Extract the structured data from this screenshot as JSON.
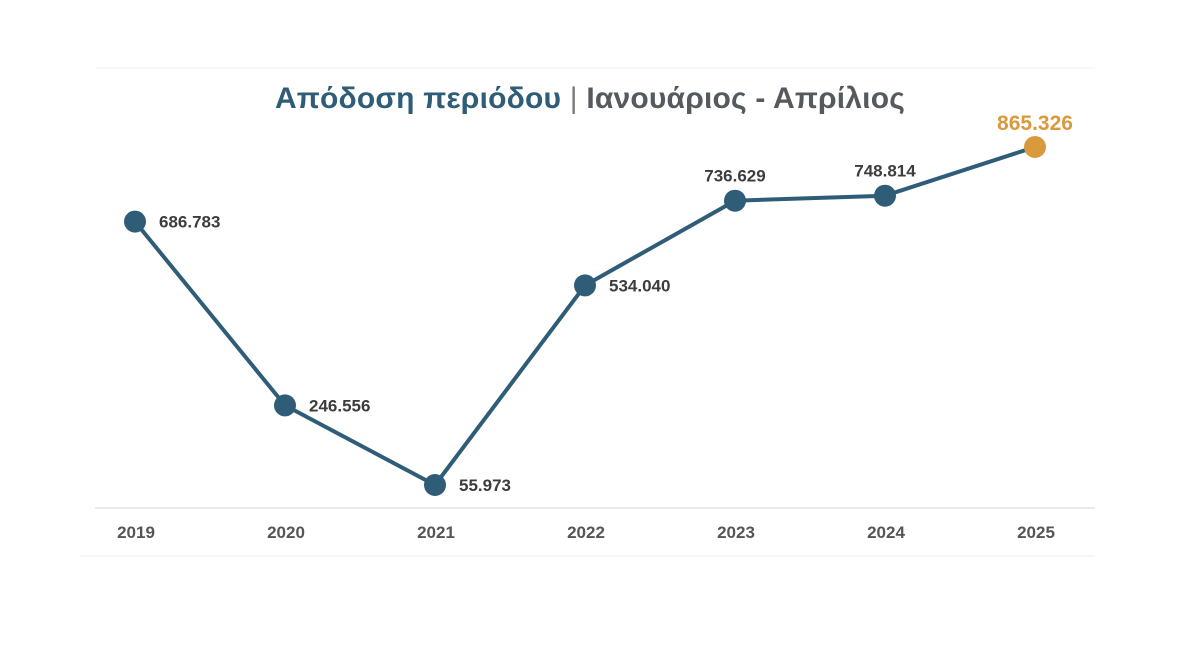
{
  "chart_data": {
    "type": "line",
    "title": {
      "main": "Απόδοση περιόδου",
      "separator": "|",
      "sub": "Ιανουάριος - Απρίλιος"
    },
    "categories": [
      "2019",
      "2020",
      "2021",
      "2022",
      "2023",
      "2024",
      "2025"
    ],
    "series": [
      {
        "values": [
          686783,
          246556,
          55973,
          534040,
          736629,
          748814,
          865326
        ],
        "value_labels": [
          "686.783",
          "246.556",
          "55.973",
          "534.040",
          "736.629",
          "748.814",
          "865.326"
        ]
      }
    ],
    "highlight_index": 6,
    "xlabel": "",
    "ylabel": "",
    "grid": false,
    "legend": "none",
    "colors": {
      "line": "#2f5d78",
      "marker": "#2f5d78",
      "highlight": "#d99a3e",
      "label": "#3d3d3d",
      "tick": "#555555",
      "axis": "#e3e3e3"
    }
  }
}
